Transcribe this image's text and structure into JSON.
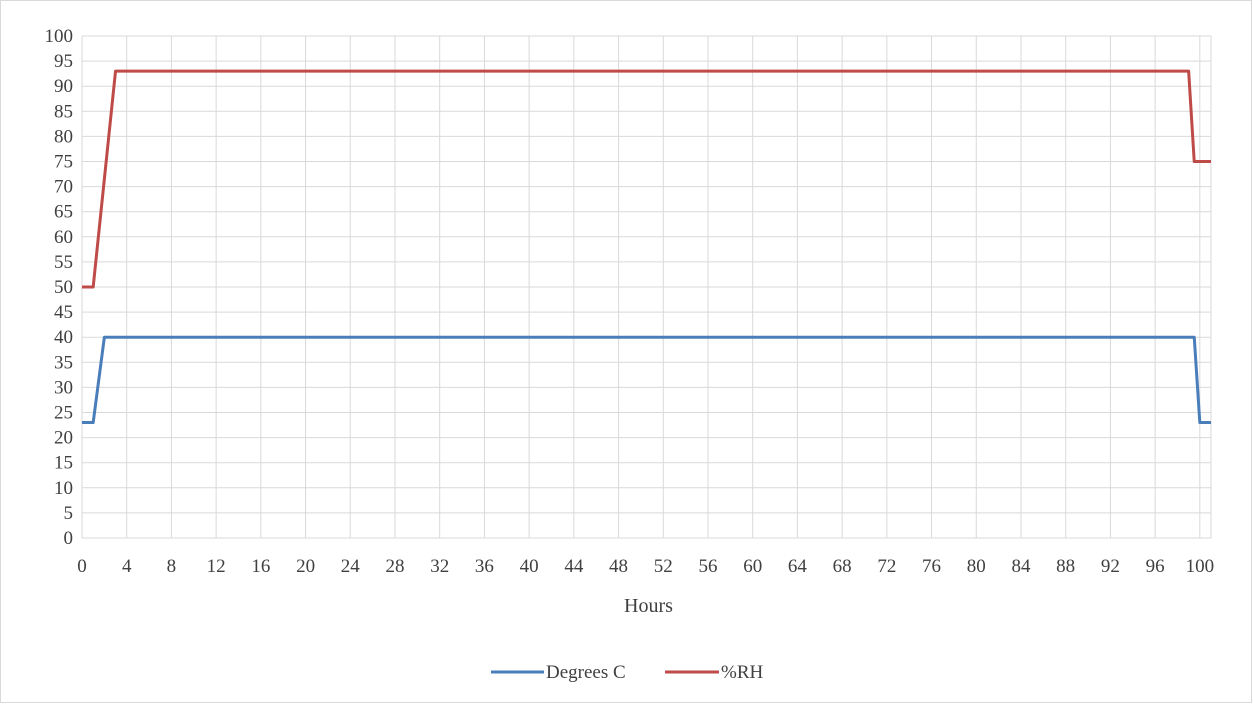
{
  "chart_data": {
    "type": "line",
    "title": "",
    "xlabel": "Hours",
    "ylabel": "",
    "xlim": [
      0,
      101
    ],
    "ylim": [
      0,
      100
    ],
    "y_ticks": [
      0,
      5,
      10,
      15,
      20,
      25,
      30,
      35,
      40,
      45,
      50,
      55,
      60,
      65,
      70,
      75,
      80,
      85,
      90,
      95,
      100
    ],
    "x_ticks": [
      0,
      4,
      8,
      12,
      16,
      20,
      24,
      28,
      32,
      36,
      40,
      44,
      48,
      52,
      56,
      60,
      64,
      68,
      72,
      76,
      80,
      84,
      88,
      92,
      96,
      100
    ],
    "grid": true,
    "legend_position": "bottom",
    "series": [
      {
        "name": "Degrees C",
        "color": "#4a7ebb",
        "points": [
          [
            0,
            23
          ],
          [
            1,
            23
          ],
          [
            2,
            40
          ],
          [
            99.5,
            40
          ],
          [
            100,
            23
          ],
          [
            101,
            23
          ]
        ]
      },
      {
        "name": "%RH",
        "color": "#be4b48",
        "points": [
          [
            0,
            50
          ],
          [
            1,
            50
          ],
          [
            3,
            93
          ],
          [
            99,
            93
          ],
          [
            99.5,
            75
          ],
          [
            101,
            75
          ]
        ]
      }
    ]
  }
}
